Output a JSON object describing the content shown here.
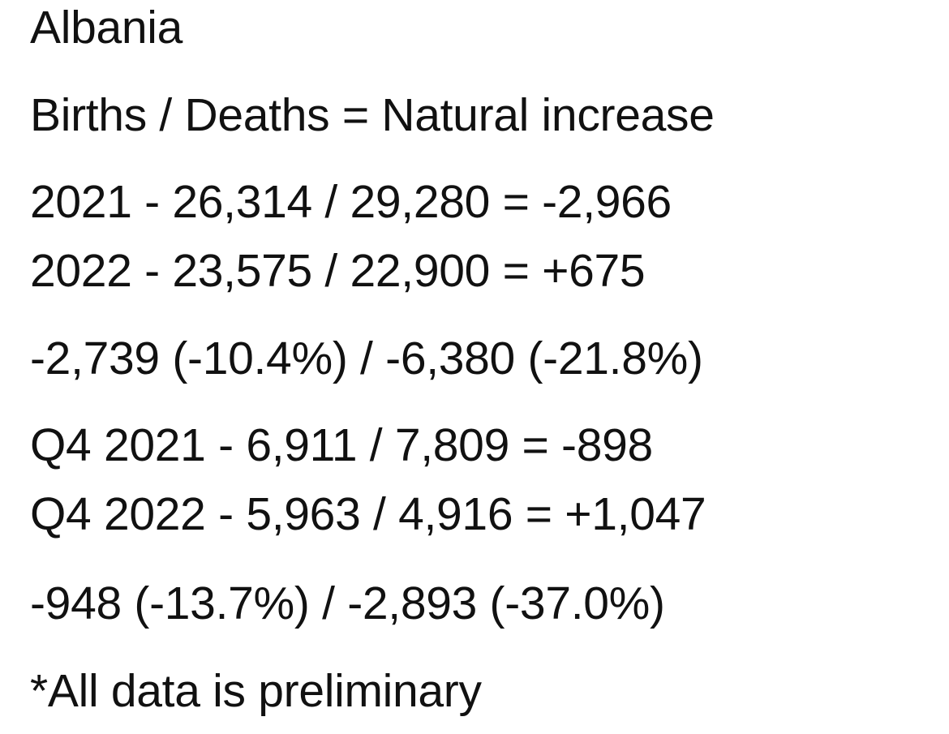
{
  "title": "Albania",
  "header": "Births / Deaths = Natural increase",
  "annual": [
    "2021 - 26,314 / 29,280 = -2,966",
    "2022 - 23,575 / 22,900 = +675"
  ],
  "annual_change": "-2,739 (-10.4%) / -6,380 (-21.8%)",
  "quarterly": [
    "Q4 2021 - 6,911 / 7,809 = -898",
    "Q4 2022 - 5,963 / 4,916 = +1,047"
  ],
  "quarterly_change": "-948 (-13.7%) / -2,893 (-37.0%)",
  "footnote": "*All data is preliminary"
}
